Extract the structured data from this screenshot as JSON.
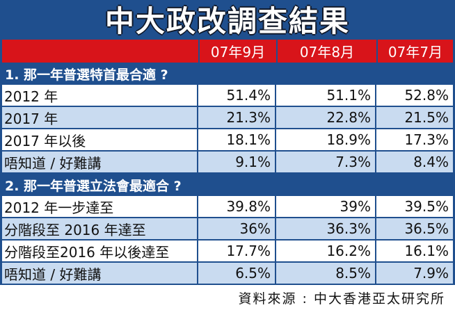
{
  "title": "中大政改調查結果",
  "header": {
    "col1": "07年9月",
    "col2": "07年8月",
    "col3": "07年7月"
  },
  "section1": {
    "heading": "1. 那一年普選特首最合適 ?",
    "rows": [
      {
        "label": "2012 年",
        "v1": "51.4%",
        "v2": "51.1%",
        "v3": "52.8%"
      },
      {
        "label": "2017 年",
        "v1": "21.3%",
        "v2": "22.8%",
        "v3": "21.5%"
      },
      {
        "label": "2017 年以後",
        "v1": "18.1%",
        "v2": "18.9%",
        "v3": "17.3%"
      },
      {
        "label": "唔知道 / 好難講",
        "v1": "9.1%",
        "v2": "7.3%",
        "v3": "8.4%"
      }
    ]
  },
  "section2": {
    "heading": "2. 那一年普選立法會最適合 ?",
    "rows": [
      {
        "label": "2012 年一步達至",
        "v1": "39.8%",
        "v2": "39%",
        "v3": "39.5%"
      },
      {
        "label": "分階段至 2016 年達至",
        "v1": "36%",
        "v2": "36.3%",
        "v3": "36.5%"
      },
      {
        "label": "分階段至2016 年以後達至",
        "v1": "17.7%",
        "v2": "16.2%",
        "v3": "16.1%"
      },
      {
        "label": "唔知道 / 好難講",
        "v1": "6.5%",
        "v2": "8.5%",
        "v3": "7.9%"
      }
    ]
  },
  "source": "資料來源 : 中大香港亞太研究所"
}
